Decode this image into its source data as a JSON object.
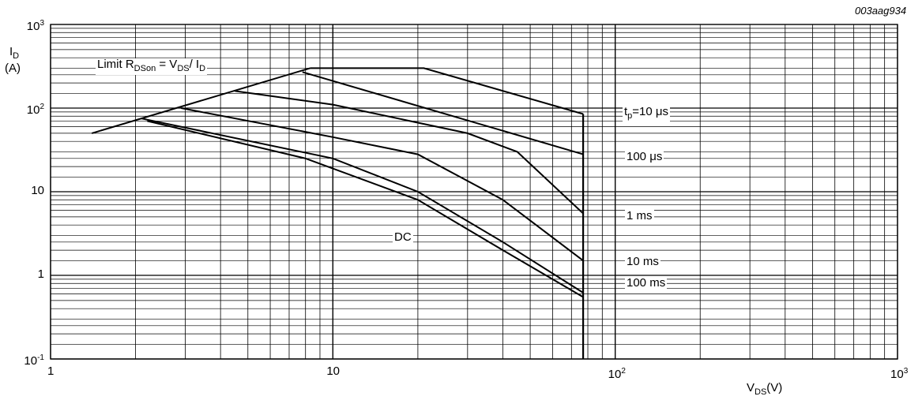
{
  "chart_data": {
    "type": "line",
    "figure_code": "003aag934",
    "x_scale": "log",
    "y_scale": "log",
    "xlim": [
      1,
      1000
    ],
    "ylim": [
      0.1,
      1000
    ],
    "grid": true,
    "xlabel": {
      "main": "V",
      "sub": "DS",
      "unit": "(V)"
    },
    "ylabel": {
      "main": "I",
      "sub": "D",
      "unit": "(A)"
    },
    "x_ticks": [
      {
        "value": 1,
        "base": "1",
        "exp": ""
      },
      {
        "value": 10,
        "base": "10",
        "exp": ""
      },
      {
        "value": 100,
        "base": "10",
        "exp": "2"
      },
      {
        "value": 1000,
        "base": "10",
        "exp": "3"
      }
    ],
    "y_ticks": [
      {
        "value": 0.1,
        "base": "10",
        "exp": "-1"
      },
      {
        "value": 1,
        "base": "1",
        "exp": ""
      },
      {
        "value": 10,
        "base": "10",
        "exp": ""
      },
      {
        "value": 100,
        "base": "10",
        "exp": "2"
      },
      {
        "value": 1000,
        "base": "10",
        "exp": "3"
      }
    ],
    "limit_line": {
      "label": {
        "text1": "Limit R",
        "sub1": "DSon",
        "text2": " = V",
        "sub2": "DS",
        "text3": "/ I",
        "sub3": "D"
      },
      "points": [
        [
          1.4,
          50
        ],
        [
          8.3,
          300
        ]
      ]
    },
    "vertical_limit_x": 77,
    "series": [
      {
        "name": "t_p=10 μs",
        "points": [
          [
            8.3,
            300
          ],
          [
            21,
            300
          ],
          [
            77,
            85
          ]
        ]
      },
      {
        "name": "100 μs",
        "points": [
          [
            7.8,
            270
          ],
          [
            77,
            28
          ]
        ]
      },
      {
        "name": "1 ms",
        "points": [
          [
            4.5,
            160
          ],
          [
            10,
            110
          ],
          [
            30,
            50
          ],
          [
            45,
            30
          ],
          [
            77,
            5.5
          ]
        ]
      },
      {
        "name": "10 ms",
        "points": [
          [
            2.9,
            100
          ],
          [
            10,
            45
          ],
          [
            20,
            28
          ],
          [
            40,
            8
          ],
          [
            77,
            1.5
          ]
        ]
      },
      {
        "name": "100 ms",
        "points": [
          [
            2.1,
            75
          ],
          [
            10,
            25
          ],
          [
            20,
            10
          ],
          [
            40,
            2.5
          ],
          [
            77,
            0.62
          ]
        ]
      },
      {
        "name": "DC",
        "points": [
          [
            2.2,
            70
          ],
          [
            8,
            25
          ],
          [
            20,
            8
          ],
          [
            40,
            2
          ],
          [
            77,
            0.55
          ]
        ]
      }
    ],
    "curve_labels": [
      {
        "series": "t_p=10 μs",
        "main": "t",
        "sub": "p",
        "rest": "=10 μs"
      },
      {
        "series": "100 μs",
        "main": "100 μs",
        "sub": "",
        "rest": ""
      },
      {
        "series": "1 ms",
        "main": "1 ms",
        "sub": "",
        "rest": ""
      },
      {
        "series": "10 ms",
        "main": "10 ms",
        "sub": "",
        "rest": ""
      },
      {
        "series": "100 ms",
        "main": "100 ms",
        "sub": "",
        "rest": ""
      },
      {
        "series": "DC",
        "main": "DC",
        "sub": "",
        "rest": ""
      }
    ]
  }
}
